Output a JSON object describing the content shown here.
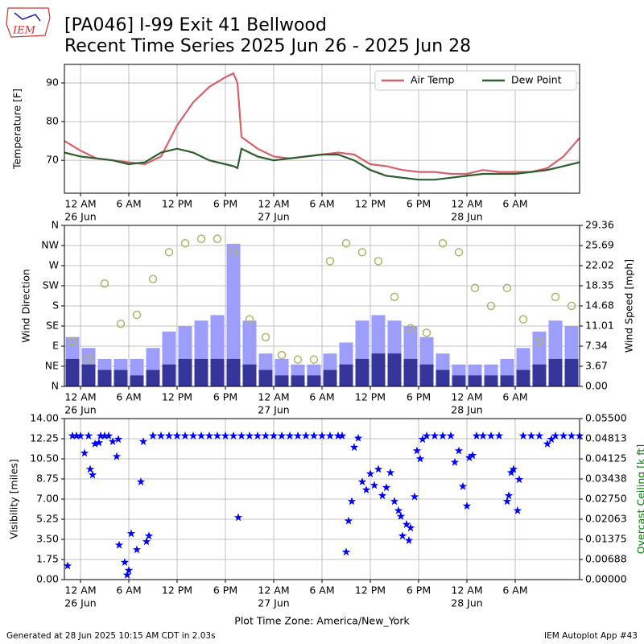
{
  "header": {
    "title": "[PA046] I-99 Exit 41 Bellwood",
    "subtitle": "Recent Time Series 2025 Jun 26 - 2025 Jun 28",
    "logo": "IEM"
  },
  "footer": {
    "timezone": "Plot Time Zone: America/New_York",
    "generated": "Generated at 28 Jun 2025 10:15 AM CDT in 2.03s",
    "app": "IEM Autoplot App #43"
  },
  "chart_data": [
    {
      "type": "line",
      "ylabel": "Temperature [F]",
      "grid": true,
      "legend": "upper right",
      "xlim": [
        -2,
        62
      ],
      "ylim": [
        61.5,
        94.8
      ],
      "yticks": [
        70,
        80,
        90
      ],
      "xticks": [
        {
          "value": 0,
          "label": "12 AM",
          "date": "26 Jun"
        },
        {
          "value": 6,
          "label": "6 AM"
        },
        {
          "value": 12,
          "label": "12 PM"
        },
        {
          "value": 18,
          "label": "6 PM"
        },
        {
          "value": 24,
          "label": "12 AM",
          "date": "27 Jun"
        },
        {
          "value": 30,
          "label": "6 AM"
        },
        {
          "value": 36,
          "label": "12 PM"
        },
        {
          "value": 42,
          "label": "6 PM"
        },
        {
          "value": 48,
          "label": "12 AM",
          "date": "28 Jun"
        },
        {
          "value": 54,
          "label": "6 AM"
        }
      ],
      "x": [
        -2,
        0,
        2,
        4,
        6,
        8,
        10,
        12,
        14,
        16,
        18,
        19,
        19.5,
        20,
        22,
        24,
        26,
        28,
        30,
        32,
        34,
        36,
        38,
        40,
        42,
        44,
        46,
        48,
        50,
        52,
        54,
        56,
        58,
        60,
        62
      ],
      "series": [
        {
          "name": "Air Temp",
          "color": "#d6616b",
          "values": [
            75,
            72.5,
            70.5,
            70,
            69.5,
            69,
            71,
            79,
            85,
            89,
            91.5,
            92.5,
            90,
            76,
            73,
            71,
            70.5,
            71,
            71.5,
            72,
            71.5,
            69,
            68.5,
            67.5,
            67,
            67,
            66.5,
            66.5,
            67.5,
            67,
            67,
            67,
            68,
            71,
            75.8
          ]
        },
        {
          "name": "Dew Point",
          "color": "#2d5e2d",
          "values": [
            72,
            71,
            70.5,
            70,
            69,
            69.5,
            72,
            73,
            72,
            70,
            69,
            68.5,
            68,
            73,
            71,
            70,
            70.5,
            71,
            71.5,
            71.5,
            70,
            67.5,
            66,
            65.5,
            65,
            65,
            65.5,
            66,
            66.5,
            66.5,
            66.5,
            67,
            67.5,
            68.5,
            69.5
          ]
        }
      ]
    },
    {
      "type": "bar",
      "ylabel": "Wind Direction",
      "y2label": "Wind Speed [mph]",
      "grid": true,
      "xlim": [
        -2,
        62
      ],
      "ylim": [
        0,
        360
      ],
      "y2lim": [
        0,
        29.36
      ],
      "yticks": [
        {
          "value": 0,
          "label": "N"
        },
        {
          "value": 45,
          "label": "NE"
        },
        {
          "value": 90,
          "label": "E"
        },
        {
          "value": 135,
          "label": "SE"
        },
        {
          "value": 180,
          "label": "S"
        },
        {
          "value": 225,
          "label": "SW"
        },
        {
          "value": 270,
          "label": "W"
        },
        {
          "value": 315,
          "label": "NW"
        },
        {
          "value": 360,
          "label": "N"
        }
      ],
      "y2ticks": [
        {
          "value": 0,
          "label": "0.00"
        },
        3.67,
        7.34,
        11.01,
        14.68,
        18.35,
        22.02,
        25.69,
        29.36
      ],
      "xticks": [
        {
          "value": 0,
          "label": "12 AM",
          "date": "26 Jun"
        },
        {
          "value": 6,
          "label": "6 AM"
        },
        {
          "value": 12,
          "label": "12 PM"
        },
        {
          "value": 18,
          "label": "6 PM"
        },
        {
          "value": 24,
          "label": "12 AM",
          "date": "27 Jun"
        },
        {
          "value": 30,
          "label": "6 AM"
        },
        {
          "value": 36,
          "label": "12 PM"
        },
        {
          "value": 42,
          "label": "6 PM"
        },
        {
          "value": 48,
          "label": "12 AM",
          "date": "28 Jun"
        },
        {
          "value": 54,
          "label": "6 AM"
        }
      ],
      "x": [
        -1,
        1,
        3,
        5,
        7,
        9,
        11,
        13,
        15,
        17,
        19,
        21,
        23,
        25,
        27,
        29,
        31,
        33,
        35,
        37,
        39,
        41,
        43,
        45,
        47,
        49,
        51,
        53,
        55,
        57,
        59,
        61
      ],
      "series": [
        {
          "kind": "bar",
          "axis": "y2",
          "color": "#9d9dfb",
          "values": [
            9,
            7,
            5,
            5,
            5,
            7,
            10,
            11,
            12,
            13,
            26,
            12,
            6,
            5,
            4,
            4,
            6,
            8,
            12,
            13,
            12,
            11,
            9,
            6,
            4,
            4,
            4,
            5,
            7,
            10,
            12,
            11
          ]
        },
        {
          "kind": "bar",
          "axis": "y2",
          "color": "#35359a",
          "values": [
            5,
            4,
            3,
            3,
            2,
            3,
            4,
            5,
            5,
            5,
            5,
            4,
            3,
            2,
            2,
            2,
            3,
            4,
            5,
            6,
            6,
            5,
            4,
            3,
            2,
            2,
            2,
            2,
            3,
            4,
            5,
            5
          ]
        },
        {
          "kind": "scatter",
          "axis": "y",
          "color": "#b0b46a",
          "values": [
            100,
            60,
            230,
            140,
            160,
            240,
            300,
            320,
            330,
            330,
            300,
            150,
            110,
            70,
            60,
            60,
            280,
            320,
            300,
            280,
            200,
            130,
            120,
            320,
            300,
            220,
            180,
            220,
            150,
            100,
            200,
            180
          ]
        }
      ]
    },
    {
      "type": "scatter",
      "ylabel": "Visibility [miles]",
      "y2label": "Overcast Ceiling [k ft]",
      "y2color": "#008000",
      "grid": true,
      "xlim": [
        -2,
        62
      ],
      "ylim": [
        0,
        14
      ],
      "y2lim": [
        0,
        0.055
      ],
      "yticks": [
        {
          "value": 0,
          "label": "0.00"
        },
        {
          "value": 1.75,
          "label": "1.75"
        },
        {
          "value": 3.5,
          "label": "3.50"
        },
        {
          "value": 5.25,
          "label": "5.25"
        },
        {
          "value": 7,
          "label": "7.00"
        },
        {
          "value": 8.75,
          "label": "8.75"
        },
        {
          "value": 10.5,
          "label": "10.50"
        },
        {
          "value": 12.25,
          "label": "12.25"
        },
        {
          "value": 14,
          "label": "14.00"
        }
      ],
      "y2ticks": [
        {
          "value": 0,
          "label": "0.00000"
        },
        {
          "value": 0.006875,
          "label": "0.00688"
        },
        {
          "value": 0.01375,
          "label": "0.01375"
        },
        {
          "value": 0.020625,
          "label": "0.02063"
        },
        {
          "value": 0.0275,
          "label": "0.02750"
        },
        {
          "value": 0.034375,
          "label": "0.03438"
        },
        {
          "value": 0.04125,
          "label": "0.04125"
        },
        {
          "value": 0.048125,
          "label": "0.04813"
        },
        {
          "value": 0.055,
          "label": "0.05500"
        }
      ],
      "xticks": [
        {
          "value": 0,
          "label": "12 AM",
          "date": "26 Jun"
        },
        {
          "value": 6,
          "label": "6 AM"
        },
        {
          "value": 12,
          "label": "12 PM"
        },
        {
          "value": 18,
          "label": "6 PM"
        },
        {
          "value": 24,
          "label": "12 AM",
          "date": "27 Jun"
        },
        {
          "value": 30,
          "label": "6 AM"
        },
        {
          "value": 36,
          "label": "12 PM"
        },
        {
          "value": 42,
          "label": "6 PM"
        },
        {
          "value": 48,
          "label": "12 AM",
          "date": "28 Jun"
        },
        {
          "value": 54,
          "label": "6 AM"
        }
      ],
      "x": [
        -1.6,
        -1,
        -0.5,
        0,
        0.5,
        1,
        1.2,
        1.5,
        1.8,
        2.3,
        2.5,
        3,
        3.5,
        4,
        4.5,
        4.7,
        4.8,
        5.5,
        5.8,
        6,
        6.3,
        7,
        7.5,
        7.8,
        8.2,
        8.5,
        9,
        10,
        11,
        12,
        13,
        14,
        15,
        16,
        17,
        18,
        19,
        19.6,
        20,
        21,
        22,
        23,
        24,
        25,
        26,
        27,
        28,
        29,
        30,
        31,
        32,
        32.5,
        33,
        33.3,
        33.7,
        34,
        34.5,
        35,
        35.5,
        36,
        36.5,
        37,
        37.5,
        38,
        38.5,
        39,
        39.5,
        39.8,
        40,
        40.5,
        40.8,
        41,
        41.5,
        41.8,
        42.2,
        42.5,
        43,
        44,
        45,
        46,
        46.5,
        47,
        47.5,
        48,
        48.3,
        48.7,
        49.2,
        50,
        51,
        52,
        53,
        53.2,
        53.5,
        53.8,
        54.3,
        54.5,
        55,
        56,
        57,
        58,
        58.5,
        59,
        60,
        61,
        62
      ],
      "series": [
        {
          "kind": "scatter",
          "color": "#0000ff",
          "values": [
            1.2,
            12.5,
            12.5,
            12.5,
            11,
            12.5,
            9.6,
            9.1,
            11.8,
            11.9,
            12.5,
            12.5,
            12.5,
            12,
            10.7,
            12.2,
            3,
            1.5,
            0.4,
            0.8,
            4,
            2.6,
            8.5,
            12,
            3.3,
            3.8,
            12.5,
            12.5,
            12.5,
            12.5,
            12.5,
            12.5,
            12.5,
            12.5,
            12.5,
            12.5,
            12.5,
            5.4,
            12.5,
            12.5,
            12.5,
            12.5,
            12.5,
            12.5,
            12.5,
            12.5,
            12.5,
            12.5,
            12.5,
            12.5,
            12.5,
            12.5,
            2.4,
            5.1,
            6.8,
            11.5,
            12.3,
            8.5,
            7.8,
            9.2,
            8.2,
            9.6,
            7.3,
            8,
            9.3,
            6.8,
            6,
            5.5,
            3.8,
            4.8,
            3.4,
            4.5,
            7.2,
            11.2,
            10.5,
            12.2,
            12.5,
            12.5,
            12.5,
            12.5,
            10.2,
            11.2,
            8.1,
            6.4,
            10.6,
            10.8,
            12.5,
            12.5,
            12.5,
            12.5,
            6.8,
            7.3,
            9.3,
            9.6,
            6,
            8.7,
            12.5,
            12.5,
            12.5,
            11.8,
            12.2,
            12.5,
            12.5,
            12.5,
            12.5
          ]
        }
      ]
    }
  ]
}
